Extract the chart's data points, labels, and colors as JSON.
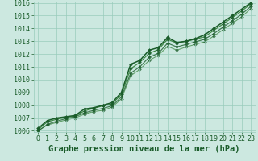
{
  "title": "Graphe pression niveau de la mer (hPa)",
  "x_ticks": [
    0,
    1,
    2,
    3,
    4,
    5,
    6,
    7,
    8,
    9,
    10,
    11,
    12,
    13,
    14,
    15,
    16,
    17,
    18,
    19,
    20,
    21,
    22,
    23
  ],
  "ylim": [
    1006,
    1016
  ],
  "yticks": [
    1006,
    1007,
    1008,
    1009,
    1010,
    1011,
    1012,
    1013,
    1014,
    1015,
    1016
  ],
  "xlim": [
    -0.5,
    23.5
  ],
  "bg_color": "#cce8e0",
  "grid_color": "#99ccbb",
  "line_color": "#1a5c2a",
  "series": [
    [
      1006.2,
      1006.8,
      1007.0,
      1007.1,
      1007.2,
      1007.7,
      1007.8,
      1008.0,
      1008.2,
      1009.0,
      1011.2,
      1011.5,
      1012.3,
      1012.5,
      1013.3,
      1012.9,
      1013.0,
      1013.2,
      1013.5,
      1014.0,
      1014.5,
      1015.0,
      1015.5,
      1016.0
    ],
    [
      1006.1,
      1006.7,
      1006.9,
      1007.05,
      1007.15,
      1007.55,
      1007.75,
      1007.95,
      1008.1,
      1008.85,
      1010.85,
      1011.35,
      1012.05,
      1012.35,
      1013.15,
      1012.85,
      1013.0,
      1013.15,
      1013.35,
      1013.85,
      1014.35,
      1014.85,
      1015.35,
      1015.92
    ],
    [
      1006.0,
      1006.5,
      1006.75,
      1006.95,
      1007.1,
      1007.4,
      1007.6,
      1007.75,
      1007.95,
      1008.65,
      1010.5,
      1011.0,
      1011.75,
      1012.05,
      1012.85,
      1012.55,
      1012.75,
      1012.95,
      1013.15,
      1013.6,
      1014.1,
      1014.6,
      1015.1,
      1015.72
    ],
    [
      1006.0,
      1006.45,
      1006.65,
      1006.85,
      1007.0,
      1007.3,
      1007.5,
      1007.6,
      1007.85,
      1008.5,
      1010.3,
      1010.8,
      1011.5,
      1011.9,
      1012.6,
      1012.3,
      1012.55,
      1012.75,
      1012.95,
      1013.4,
      1013.9,
      1014.4,
      1014.9,
      1015.55
    ]
  ],
  "marker": "D",
  "marker_size": 2.0,
  "title_fontsize": 7.5,
  "tick_fontsize": 6.0,
  "line_color2": "#2e7d32",
  "lw": [
    1.1,
    0.85,
    0.85,
    0.75
  ]
}
